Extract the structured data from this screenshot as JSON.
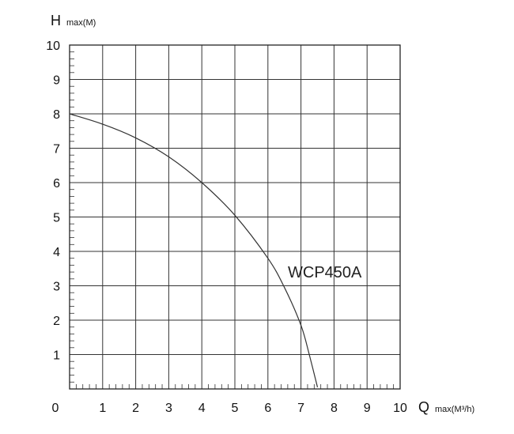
{
  "chart_data": {
    "type": "line",
    "x_axis": {
      "symbol": "Q",
      "unit_label": "max(M³/h)",
      "range": [
        0,
        10
      ],
      "ticks": [
        0,
        1,
        2,
        3,
        4,
        5,
        6,
        7,
        8,
        9,
        10
      ]
    },
    "y_axis": {
      "symbol": "H",
      "unit_label": "max(M)",
      "range": [
        0,
        10
      ],
      "ticks": [
        1,
        2,
        3,
        4,
        5,
        6,
        7,
        8,
        9,
        10
      ]
    },
    "grid": true,
    "minor_ticks_per_unit": 5,
    "series": [
      {
        "name": "WCP450A",
        "x": [
          0,
          1,
          2,
          3,
          4,
          5,
          6,
          6.5,
          7,
          7.25,
          7.5
        ],
        "y": [
          8.0,
          7.7,
          7.3,
          6.75,
          6.0,
          5.05,
          3.8,
          2.95,
          1.85,
          1.0,
          0.05
        ]
      }
    ]
  }
}
